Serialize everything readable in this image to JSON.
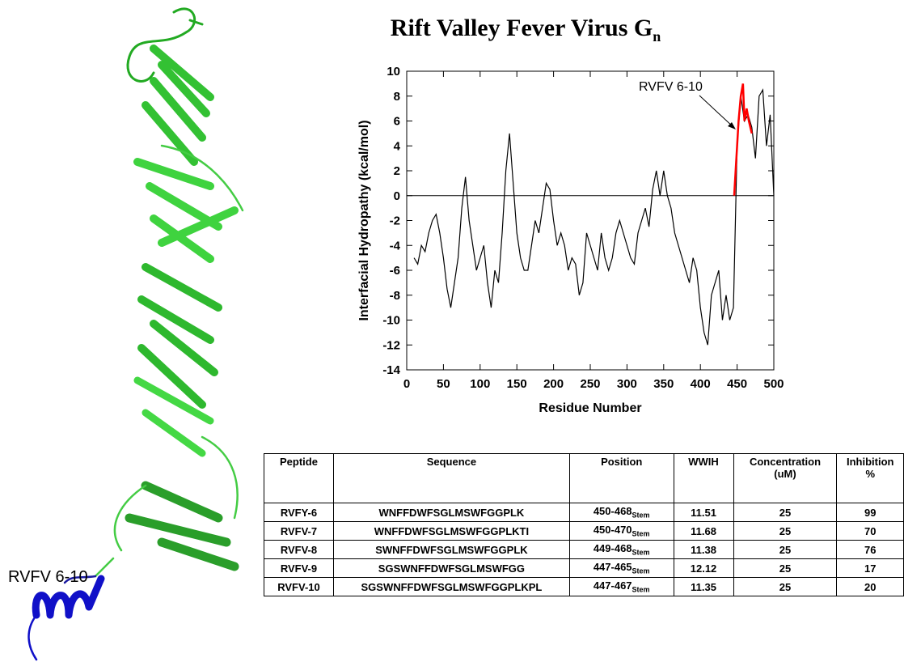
{
  "chart_data": {
    "type": "line",
    "title": "Rift Valley Fever Virus  G",
    "title_subscript": "n",
    "xlabel": "Residue Number",
    "ylabel": "Interfacial Hydropathy (kcal/mol)",
    "xlim": [
      0,
      500
    ],
    "xticks": [
      0,
      50,
      100,
      150,
      200,
      250,
      300,
      350,
      400,
      450,
      500
    ],
    "ylim": [
      -14,
      10
    ],
    "yticks": [
      -14,
      -12,
      -10,
      -8,
      -6,
      -4,
      -2,
      0,
      2,
      4,
      6,
      8,
      10
    ],
    "hline": 0,
    "annotation": "RVFV 6-10",
    "series": [
      {
        "color": "#000000",
        "x": [
          10,
          15,
          20,
          25,
          30,
          35,
          40,
          45,
          50,
          55,
          60,
          65,
          70,
          75,
          80,
          85,
          90,
          95,
          100,
          105,
          110,
          115,
          120,
          125,
          130,
          135,
          140,
          145,
          150,
          155,
          160,
          165,
          170,
          175,
          180,
          185,
          190,
          195,
          200,
          205,
          210,
          215,
          220,
          225,
          230,
          235,
          240,
          245,
          250,
          255,
          260,
          265,
          270,
          275,
          280,
          285,
          290,
          295,
          300,
          305,
          310,
          315,
          320,
          325,
          330,
          335,
          340,
          345,
          350,
          355,
          360,
          365,
          370,
          375,
          380,
          385,
          390,
          395,
          400,
          405,
          410,
          415,
          420,
          425,
          430,
          435,
          440,
          445,
          450,
          455,
          460,
          465,
          470,
          475,
          480,
          485,
          490,
          495,
          500
        ],
        "values": [
          -5,
          -5.5,
          -4,
          -4.5,
          -3,
          -2,
          -1.5,
          -3,
          -5,
          -7.5,
          -9,
          -7,
          -5,
          -1,
          1.5,
          -2,
          -4,
          -6,
          -5,
          -4,
          -7,
          -9,
          -6,
          -7,
          -3,
          2,
          5,
          1,
          -3,
          -5,
          -6,
          -6,
          -4,
          -2,
          -3,
          -1,
          1,
          0.5,
          -2,
          -4,
          -3,
          -4,
          -6,
          -5,
          -5.5,
          -8,
          -7,
          -3,
          -4,
          -5,
          -6,
          -3,
          -5,
          -6,
          -5,
          -3,
          -2,
          -3,
          -4,
          -5,
          -5.5,
          -3,
          -2,
          -1,
          -2.5,
          0.5,
          2,
          0,
          2,
          0,
          -1,
          -3,
          -4,
          -5,
          -6,
          -7,
          -5,
          -6,
          -9,
          -11,
          -12,
          -8,
          -7,
          -6,
          -10,
          -8,
          -10,
          -9,
          4,
          8,
          6,
          6.5,
          5.5,
          3,
          8,
          8.5,
          4,
          6.5,
          0
        ]
      },
      {
        "color": "#ff0000",
        "x": [
          446,
          448,
          450,
          452,
          455,
          458,
          460,
          463,
          466,
          470
        ],
        "values": [
          0,
          2,
          4,
          6,
          8,
          9,
          6,
          7,
          6,
          5
        ]
      }
    ]
  },
  "table": {
    "header": [
      "Peptide",
      "Sequence",
      "Position",
      "WWIH",
      "Concentration (uM)",
      "Inhibition %"
    ],
    "rows": [
      [
        "RVFY-6",
        "WNFFDWFSGLMSWFGGPLK",
        {
          "text": "450-468",
          "sub": "Stem"
        },
        "11.51",
        "25",
        "99"
      ],
      [
        "RVFV-7",
        "WNFFDWFSGLMSWFGGPLKTI",
        {
          "text": "450-470",
          "sub": "Stem"
        },
        "11.68",
        "25",
        "70"
      ],
      [
        "RVFV-8",
        "SWNFFDWFSGLMSWFGGPLK",
        {
          "text": "449-468",
          "sub": "Stem"
        },
        "11.38",
        "25",
        "76"
      ],
      [
        "RVFV-9",
        "SGSWNFFDWFSGLMSWFGG",
        {
          "text": "447-465",
          "sub": "Stem"
        },
        "12.12",
        "25",
        "17"
      ],
      [
        "RVFV-10",
        "SGSWNFFDWFSGLMSWFGGPLKPL",
        {
          "text": "447-467",
          "sub": "Stem"
        },
        "11.35",
        "25",
        "20"
      ]
    ]
  },
  "structure_label": "RVFV 6-10"
}
